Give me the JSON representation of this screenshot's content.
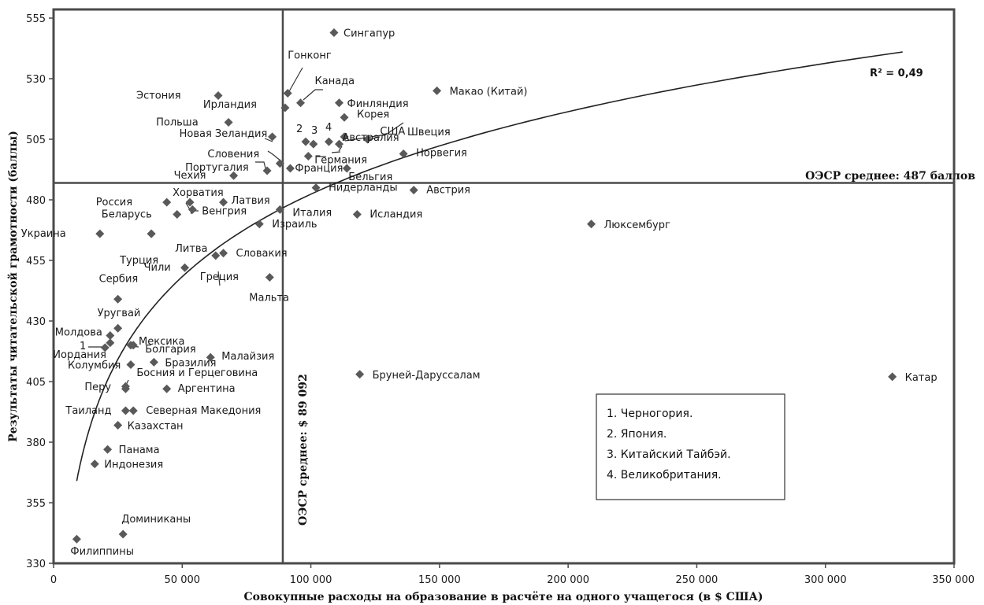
{
  "chart_data": {
    "type": "scatter",
    "xlabel": "Совокупные расходы на образование в расчёте на одного учащегося (в $ США)",
    "ylabel": "Результаты читательской грамотности (баллы)",
    "xlim": [
      0,
      350000
    ],
    "ylim": [
      330,
      555
    ],
    "x_ticks": [
      0,
      50000,
      100000,
      150000,
      200000,
      250000,
      300000,
      350000
    ],
    "x_tick_labels": [
      "0",
      "50 000",
      "100 000",
      "150 000",
      "200 000",
      "250 000",
      "300 000",
      "350 000"
    ],
    "y_ticks": [
      330,
      355,
      380,
      405,
      430,
      455,
      480,
      505,
      530,
      555
    ],
    "y_tick_labels": [
      "330",
      "355",
      "380",
      "405",
      "430",
      "455",
      "480",
      "505",
      "530",
      "555"
    ],
    "grid": false,
    "marker": "diamond",
    "marker_color": "#595959",
    "reference_lines": {
      "x": {
        "value": 89092,
        "label": "ОЭСР среднее: $ 89 092"
      },
      "y": {
        "value": 487,
        "label": "ОЭСР среднее: 487 баллов"
      }
    },
    "trendline": {
      "type": "logarithmic",
      "x_range": [
        9000,
        330000
      ],
      "y_range": [
        364,
        541
      ],
      "r2_label": "R² = 0,49"
    },
    "points": [
      {
        "label": "Сингапур",
        "x": 109000,
        "y": 549
      },
      {
        "label": "Гонконг",
        "x": 91000,
        "y": 524
      },
      {
        "label": "Канада",
        "x": 96000,
        "y": 520
      },
      {
        "label": "Макао (Китай)",
        "x": 149000,
        "y": 525
      },
      {
        "label": "Эстония",
        "x": 64000,
        "y": 523
      },
      {
        "label": "Ирландия",
        "x": 90000,
        "y": 518
      },
      {
        "label": "Финляндия",
        "x": 111000,
        "y": 520
      },
      {
        "label": "Польша",
        "x": 68000,
        "y": 512
      },
      {
        "label": "Корея",
        "x": 113000,
        "y": 514
      },
      {
        "label": "Швеция",
        "x": 113000,
        "y": 506
      },
      {
        "label": "США",
        "x": 122000,
        "y": 505
      },
      {
        "label": "Новая Зеландия",
        "x": 85000,
        "y": 506
      },
      {
        "label": "Япония",
        "x": 98000,
        "y": 504
      },
      {
        "label": "Китайский Тайбэй",
        "x": 101000,
        "y": 503
      },
      {
        "label": "Великобритания",
        "x": 107000,
        "y": 504
      },
      {
        "label": "Австралия",
        "x": 111000,
        "y": 503
      },
      {
        "label": "Германия",
        "x": 99000,
        "y": 498
      },
      {
        "label": "Норвегия",
        "x": 136000,
        "y": 499
      },
      {
        "label": "Словения",
        "x": 88000,
        "y": 495
      },
      {
        "label": "Португалия",
        "x": 83000,
        "y": 492
      },
      {
        "label": "Франция",
        "x": 92000,
        "y": 493
      },
      {
        "label": "Бельгия",
        "x": 114000,
        "y": 493
      },
      {
        "label": "Чехия",
        "x": 70000,
        "y": 490
      },
      {
        "label": "Нидерланды",
        "x": 102000,
        "y": 485
      },
      {
        "label": "Австрия",
        "x": 140000,
        "y": 484
      },
      {
        "label": "Россия",
        "x": 44000,
        "y": 479
      },
      {
        "label": "Хорватия",
        "x": 53000,
        "y": 479
      },
      {
        "label": "Латвия",
        "x": 66000,
        "y": 479
      },
      {
        "label": "Беларусь",
        "x": 48000,
        "y": 474
      },
      {
        "label": "Венгрия",
        "x": 54000,
        "y": 476
      },
      {
        "label": "Италия",
        "x": 88000,
        "y": 476
      },
      {
        "label": "Исландия",
        "x": 118000,
        "y": 474
      },
      {
        "label": "Израиль",
        "x": 80000,
        "y": 470
      },
      {
        "label": "Люксембург",
        "x": 209000,
        "y": 470
      },
      {
        "label": "Украина",
        "x": 18000,
        "y": 466
      },
      {
        "label": "Литва",
        "x": 38000,
        "y": 466
      },
      {
        "label": "Турция",
        "x": 38000,
        "y": 466
      },
      {
        "label": "Словакия",
        "x": 66000,
        "y": 458
      },
      {
        "label": "Греция",
        "x": 63000,
        "y": 457
      },
      {
        "label": "Чили",
        "x": 51000,
        "y": 452
      },
      {
        "label": "Мальта",
        "x": 84000,
        "y": 448
      },
      {
        "label": "Сербия",
        "x": 25000,
        "y": 439
      },
      {
        "label": "Уругвай",
        "x": 25000,
        "y": 427
      },
      {
        "label": "Молдова",
        "x": 22000,
        "y": 424
      },
      {
        "label": "Черногория",
        "x": 22000,
        "y": 421
      },
      {
        "label": "Иордания",
        "x": 20000,
        "y": 419
      },
      {
        "label": "Мексика",
        "x": 30000,
        "y": 420
      },
      {
        "label": "Болгария",
        "x": 31000,
        "y": 420
      },
      {
        "label": "Колумбия",
        "x": 30000,
        "y": 412
      },
      {
        "label": "Бразилия",
        "x": 39000,
        "y": 413
      },
      {
        "label": "Малайзия",
        "x": 61000,
        "y": 415
      },
      {
        "label": "Перу",
        "x": 28000,
        "y": 403
      },
      {
        "label": "Босния и Герцеговина",
        "x": 28000,
        "y": 402
      },
      {
        "label": "Аргентина",
        "x": 44000,
        "y": 402
      },
      {
        "label": "Бруней-Даруссалам",
        "x": 119000,
        "y": 408
      },
      {
        "label": "Катар",
        "x": 326000,
        "y": 407
      },
      {
        "label": "Таиланд",
        "x": 28000,
        "y": 393
      },
      {
        "label": "Северная Македония",
        "x": 31000,
        "y": 393
      },
      {
        "label": "Казахстан",
        "x": 25000,
        "y": 387
      },
      {
        "label": "Панама",
        "x": 21000,
        "y": 377
      },
      {
        "label": "Индонезия",
        "x": 16000,
        "y": 371
      },
      {
        "label": "Доминиканы",
        "x": 27000,
        "y": 342
      },
      {
        "label": "Филиппины",
        "x": 9000,
        "y": 340
      }
    ],
    "legend_box": {
      "entries": [
        "1. Черногория.",
        "2. Япония.",
        "3. Китайский Тайбэй.",
        "4. Великобритания."
      ]
    }
  }
}
